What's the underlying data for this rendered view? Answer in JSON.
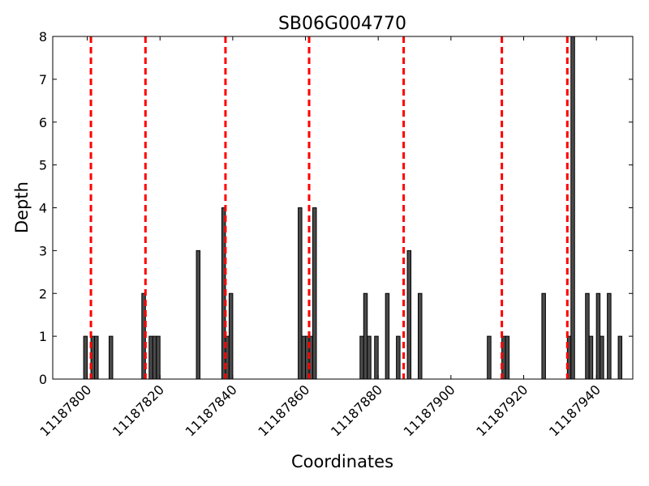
{
  "chart_data": {
    "type": "bar",
    "title": "SB06G004770",
    "xlabel": "Coordinates",
    "ylabel": "Depth",
    "xlim": [
      11187790.5,
      11187950
    ],
    "ylim": [
      0,
      8
    ],
    "xticks": [
      11187800,
      11187820,
      11187840,
      11187860,
      11187880,
      11187900,
      11187920,
      11187940
    ],
    "xtick_labels": [
      "11187800",
      "11187820",
      "11187840",
      "11187860",
      "11187880",
      "11187900",
      "11187920",
      "11187940"
    ],
    "yticks": [
      0,
      1,
      2,
      3,
      4,
      5,
      6,
      7,
      8
    ],
    "ytick_labels": [
      "0",
      "1",
      "2",
      "3",
      "4",
      "5",
      "6",
      "7",
      "8"
    ],
    "bar_width": 1,
    "bar_color": "#4a4a4a",
    "bar_edge_color": "#000000",
    "vline_color": "#ff0000",
    "vlines": [
      11187801,
      11187816,
      11187838,
      11187861,
      11187887,
      11187914,
      11187932
    ],
    "series": [
      {
        "name": "depth",
        "x": [
          11187799,
          11187801,
          11187802,
          11187806,
          11187815,
          11187817,
          11187818,
          11187819,
          11187830,
          11187837,
          11187838,
          11187839,
          11187858,
          11187859,
          11187860,
          11187861,
          11187862,
          11187875,
          11187876,
          11187877,
          11187879,
          11187882,
          11187885,
          11187888,
          11187891,
          11187910,
          11187914,
          11187915,
          11187925,
          11187932,
          11187933,
          11187937,
          11187938,
          11187940,
          11187941,
          11187943,
          11187946
        ],
        "values": [
          1,
          1,
          1,
          1,
          2,
          1,
          1,
          1,
          3,
          4,
          1,
          2,
          4,
          1,
          1,
          1,
          4,
          1,
          2,
          1,
          1,
          2,
          1,
          3,
          2,
          1,
          1,
          1,
          2,
          1,
          8,
          2,
          1,
          2,
          1,
          2,
          1
        ]
      }
    ]
  }
}
